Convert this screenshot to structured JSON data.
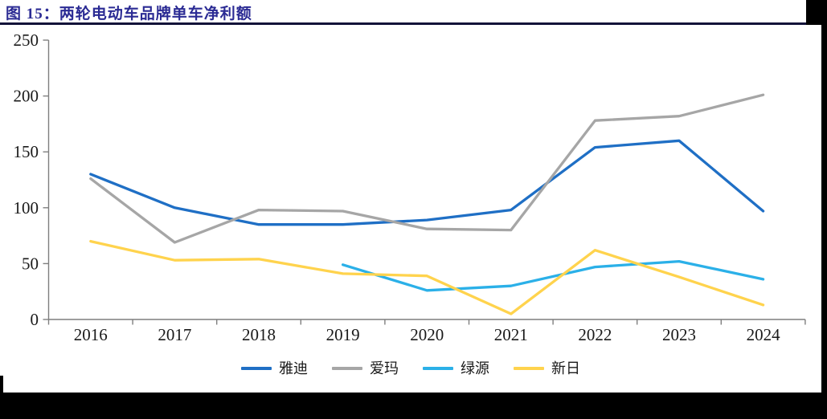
{
  "header": {
    "title": "图 15：两轮电动车品牌单车净利额"
  },
  "chart_data": {
    "type": "line",
    "title": "两轮电动车品牌单车净利额",
    "categories": [
      "2016",
      "2017",
      "2018",
      "2019",
      "2020",
      "2021",
      "2022",
      "2023",
      "2024"
    ],
    "series": [
      {
        "name": "雅迪",
        "color": "#1F6FC5",
        "values": [
          130,
          100,
          85,
          85,
          89,
          98,
          154,
          160,
          97
        ]
      },
      {
        "name": "爱玛",
        "color": "#A6A6A6",
        "values": [
          126,
          69,
          98,
          97,
          81,
          80,
          178,
          182,
          201
        ]
      },
      {
        "name": "绿源",
        "color": "#2BB0E8",
        "values": [
          null,
          null,
          null,
          49,
          26,
          30,
          47,
          52,
          36
        ]
      },
      {
        "name": "新日",
        "color": "#FFD34D",
        "values": [
          70,
          53,
          54,
          41,
          39,
          5,
          62,
          38,
          13
        ]
      }
    ],
    "ylim": [
      0,
      250
    ],
    "yticks": [
      0,
      50,
      100,
      150,
      200,
      250
    ],
    "grid": false,
    "legend_position": "bottom"
  },
  "colors": {
    "title_text": "#2B2B94",
    "title_rule": "#131339",
    "axis": "#7F7F7F",
    "tick_label": "#1A1A1A",
    "page_border": "#000000"
  }
}
